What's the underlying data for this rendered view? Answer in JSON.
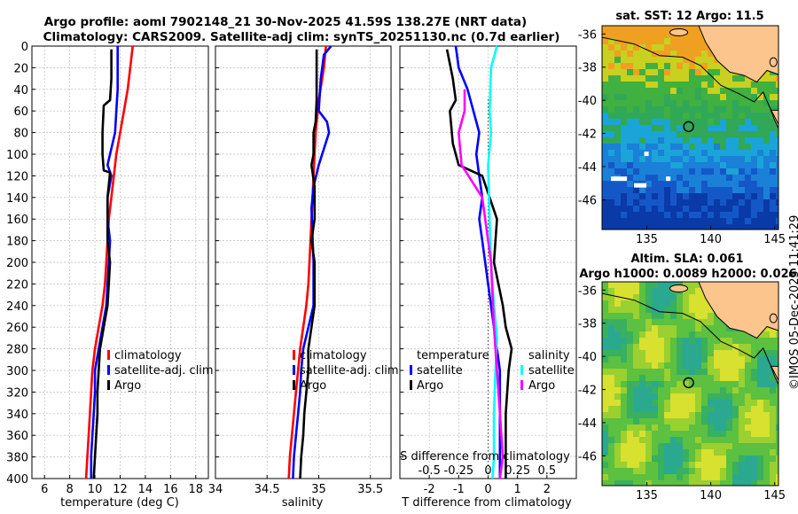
{
  "title_line1": "Argo profile: aoml 7902148_21 30-Nov-2025 41.59S 138.27E (NRT data)",
  "title_line2": "Climatology: CARS2009. Satellite-adj clim: synTS_20251130.nc (0.7d earlier)",
  "footer_stamp": "©IMOS 05-Dec-2025 11:41:29",
  "colors": {
    "climatology": "#ff0000",
    "satellite": "#0000ff",
    "argo": "#000000",
    "sat_cyan": "#00ffff",
    "argo_magenta": "#ff00ff",
    "grid": "#bbbbbb",
    "land": "#fdc58e"
  },
  "chart_data": [
    {
      "id": "temperature",
      "type": "line",
      "xlabel": "temperature (deg C)",
      "ylabel": "depth",
      "xlim": [
        5,
        19
      ],
      "ylim": [
        0,
        400
      ],
      "xticks": [
        6,
        8,
        10,
        12,
        14,
        16,
        18
      ],
      "yticks": [
        0,
        20,
        40,
        60,
        80,
        100,
        120,
        140,
        160,
        180,
        200,
        220,
        240,
        260,
        280,
        300,
        320,
        340,
        360,
        380,
        400
      ],
      "grid": true,
      "legend": {
        "position": "bottom-right",
        "entries": [
          "climatology",
          "satellite-adj. clim",
          "Argo"
        ]
      },
      "series": [
        {
          "name": "climatology",
          "color": "#ff0000",
          "points": [
            [
              13.0,
              0
            ],
            [
              12.8,
              20
            ],
            [
              12.6,
              40
            ],
            [
              12.3,
              60
            ],
            [
              12.0,
              80
            ],
            [
              11.7,
              100
            ],
            [
              11.5,
              120
            ],
            [
              11.3,
              140
            ],
            [
              11.1,
              160
            ],
            [
              11.0,
              180
            ],
            [
              10.9,
              200
            ],
            [
              10.8,
              220
            ],
            [
              10.6,
              240
            ],
            [
              10.3,
              260
            ],
            [
              10.0,
              280
            ],
            [
              9.8,
              300
            ],
            [
              9.7,
              320
            ],
            [
              9.6,
              340
            ],
            [
              9.5,
              360
            ],
            [
              9.4,
              380
            ],
            [
              9.3,
              400
            ]
          ]
        },
        {
          "name": "satellite-adj. clim",
          "color": "#0000ff",
          "points": [
            [
              11.8,
              0
            ],
            [
              11.8,
              40
            ],
            [
              11.7,
              60
            ],
            [
              11.6,
              80
            ],
            [
              11.2,
              100
            ],
            [
              11.0,
              110
            ],
            [
              11.3,
              120
            ],
            [
              11.0,
              140
            ],
            [
              11.0,
              160
            ],
            [
              11.2,
              180
            ],
            [
              11.1,
              200
            ],
            [
              11.0,
              220
            ],
            [
              10.9,
              240
            ],
            [
              10.6,
              260
            ],
            [
              10.3,
              280
            ],
            [
              10.0,
              300
            ],
            [
              10.0,
              320
            ],
            [
              9.9,
              340
            ],
            [
              9.8,
              360
            ],
            [
              9.7,
              380
            ],
            [
              9.7,
              400
            ]
          ]
        },
        {
          "name": "Argo",
          "color": "#000000",
          "points": [
            [
              11.3,
              3
            ],
            [
              11.3,
              30
            ],
            [
              11.2,
              50
            ],
            [
              10.7,
              55
            ],
            [
              10.6,
              80
            ],
            [
              10.6,
              100
            ],
            [
              10.7,
              115
            ],
            [
              11.2,
              117
            ],
            [
              11.0,
              140
            ],
            [
              11.0,
              180
            ],
            [
              11.2,
              200
            ],
            [
              11.0,
              240
            ],
            [
              10.7,
              260
            ],
            [
              10.4,
              280
            ],
            [
              10.3,
              300
            ],
            [
              10.2,
              320
            ],
            [
              10.2,
              340
            ],
            [
              10.1,
              360
            ],
            [
              10.0,
              380
            ],
            [
              9.9,
              400
            ]
          ]
        }
      ]
    },
    {
      "id": "salinity",
      "type": "line",
      "xlabel": "salinity",
      "xlim": [
        34,
        35.7
      ],
      "ylim": [
        0,
        400
      ],
      "xticks": [
        34,
        34.5,
        35,
        35.5
      ],
      "grid": true,
      "legend": {
        "position": "bottom-right",
        "entries": [
          "climatology",
          "satellite-adj. clim",
          "Argo"
        ]
      },
      "series": [
        {
          "name": "climatology",
          "color": "#ff0000",
          "points": [
            [
              35.07,
              0
            ],
            [
              35.05,
              20
            ],
            [
              35.0,
              50
            ],
            [
              34.97,
              80
            ],
            [
              34.96,
              100
            ],
            [
              34.95,
              120
            ],
            [
              34.94,
              140
            ],
            [
              34.93,
              160
            ],
            [
              34.92,
              180
            ],
            [
              34.91,
              200
            ],
            [
              34.9,
              220
            ],
            [
              34.88,
              240
            ],
            [
              34.85,
              260
            ],
            [
              34.82,
              280
            ],
            [
              34.8,
              300
            ],
            [
              34.78,
              320
            ],
            [
              34.76,
              340
            ],
            [
              34.74,
              360
            ],
            [
              34.72,
              380
            ],
            [
              34.71,
              400
            ]
          ]
        },
        {
          "name": "satellite-adj. clim",
          "color": "#0000ff",
          "points": [
            [
              35.12,
              0
            ],
            [
              35.05,
              8
            ],
            [
              35.02,
              30
            ],
            [
              35.0,
              60
            ],
            [
              35.08,
              70
            ],
            [
              35.1,
              80
            ],
            [
              35.0,
              110
            ],
            [
              34.95,
              130
            ],
            [
              34.93,
              150
            ],
            [
              34.95,
              200
            ],
            [
              34.95,
              240
            ],
            [
              34.9,
              260
            ],
            [
              34.85,
              280
            ],
            [
              34.83,
              300
            ],
            [
              34.82,
              320
            ],
            [
              34.8,
              340
            ],
            [
              34.78,
              360
            ],
            [
              34.76,
              380
            ],
            [
              34.75,
              400
            ]
          ]
        },
        {
          "name": "Argo",
          "color": "#000000",
          "points": [
            [
              34.98,
              3
            ],
            [
              34.98,
              50
            ],
            [
              34.97,
              70
            ],
            [
              34.95,
              80
            ],
            [
              34.95,
              100
            ],
            [
              34.93,
              110
            ],
            [
              34.96,
              130
            ],
            [
              34.96,
              160
            ],
            [
              34.93,
              180
            ],
            [
              34.96,
              200
            ],
            [
              34.96,
              240
            ],
            [
              34.93,
              260
            ],
            [
              34.9,
              280
            ],
            [
              34.9,
              300
            ],
            [
              34.88,
              320
            ],
            [
              34.86,
              340
            ],
            [
              34.85,
              360
            ],
            [
              34.83,
              380
            ],
            [
              34.82,
              400
            ]
          ]
        }
      ]
    },
    {
      "id": "difference",
      "type": "line",
      "xlabel": "T difference from climatology",
      "xlabel_top": "S difference from climatology",
      "xlim": [
        -3,
        3
      ],
      "ylim": [
        0,
        400
      ],
      "xticks": [
        -2,
        -1,
        0,
        1,
        2
      ],
      "xticks_s": [
        -0.5,
        -0.25,
        0,
        0.25,
        0.5
      ],
      "grid": true,
      "legend_temperature": {
        "heading": "temperature",
        "entries": [
          "satellite",
          "Argo"
        ]
      },
      "legend_salinity": {
        "heading": "salinity",
        "entries": [
          "satellite",
          "Argo"
        ]
      },
      "series": [
        {
          "name": "temperature satellite",
          "color": "#0000ff",
          "points": [
            [
              -1.1,
              0
            ],
            [
              -1.0,
              20
            ],
            [
              -0.7,
              40
            ],
            [
              -0.5,
              60
            ],
            [
              -0.3,
              80
            ],
            [
              -0.4,
              100
            ],
            [
              -0.3,
              120
            ],
            [
              -0.2,
              140
            ],
            [
              -0.3,
              160
            ],
            [
              -0.2,
              180
            ],
            [
              -0.1,
              200
            ],
            [
              0.0,
              220
            ],
            [
              0.1,
              240
            ],
            [
              0.2,
              260
            ],
            [
              0.3,
              280
            ],
            [
              0.4,
              300
            ],
            [
              0.4,
              340
            ],
            [
              0.4,
              380
            ],
            [
              0.4,
              400
            ]
          ]
        },
        {
          "name": "temperature Argo",
          "color": "#000000",
          "points": [
            [
              -1.4,
              3
            ],
            [
              -1.2,
              30
            ],
            [
              -1.1,
              50
            ],
            [
              -1.3,
              60
            ],
            [
              -1.2,
              90
            ],
            [
              -1.0,
              110
            ],
            [
              -0.2,
              120
            ],
            [
              0.3,
              160
            ],
            [
              0.2,
              200
            ],
            [
              0.5,
              240
            ],
            [
              0.6,
              260
            ],
            [
              0.8,
              280
            ],
            [
              0.7,
              300
            ],
            [
              0.6,
              340
            ],
            [
              0.6,
              380
            ],
            [
              0.6,
              400
            ]
          ]
        },
        {
          "name": "salinity satellite",
          "color": "#00ffff",
          "points": [
            [
              0.3,
              0
            ],
            [
              0.1,
              20
            ],
            [
              0.05,
              60
            ],
            [
              0.1,
              80
            ],
            [
              0.0,
              110
            ],
            [
              0.05,
              160
            ],
            [
              0.1,
              200
            ],
            [
              0.2,
              240
            ],
            [
              0.3,
              270
            ],
            [
              0.25,
              300
            ],
            [
              0.2,
              340
            ],
            [
              0.2,
              380
            ],
            [
              0.15,
              400
            ]
          ]
        },
        {
          "name": "salinity Argo",
          "color": "#ff00ff",
          "points": [
            [
              -0.8,
              40
            ],
            [
              -0.8,
              60
            ],
            [
              -1.0,
              80
            ],
            [
              -0.9,
              110
            ],
            [
              -0.2,
              140
            ],
            [
              0.1,
              200
            ],
            [
              0.2,
              260
            ],
            [
              0.3,
              300
            ],
            [
              0.4,
              340
            ],
            [
              0.5,
              380
            ],
            [
              0.4,
              400
            ]
          ]
        }
      ]
    },
    {
      "id": "sst_map",
      "type": "heatmap",
      "title": "sat. SST: 12 Argo: 11.5",
      "lon_lim": [
        131.5,
        145.3
      ],
      "lat_lim": [
        -47.8,
        -35.5
      ],
      "xticks": [
        135,
        140,
        145
      ],
      "yticks": [
        -36,
        -38,
        -40,
        -42,
        -44,
        -46
      ],
      "argo_position": [
        138.27,
        -41.59
      ]
    },
    {
      "id": "sla_map",
      "type": "heatmap",
      "title_line1": "Altim. SLA: 0.061",
      "title_line2": "Argo h1000: 0.0089 h2000: 0.026",
      "lon_lim": [
        131.5,
        145.3
      ],
      "lat_lim": [
        -47.8,
        -35.5
      ],
      "xticks": [
        135,
        140,
        145
      ],
      "yticks": [
        -36,
        -38,
        -40,
        -42,
        -44,
        -46
      ],
      "argo_position": [
        138.27,
        -41.59
      ]
    }
  ]
}
